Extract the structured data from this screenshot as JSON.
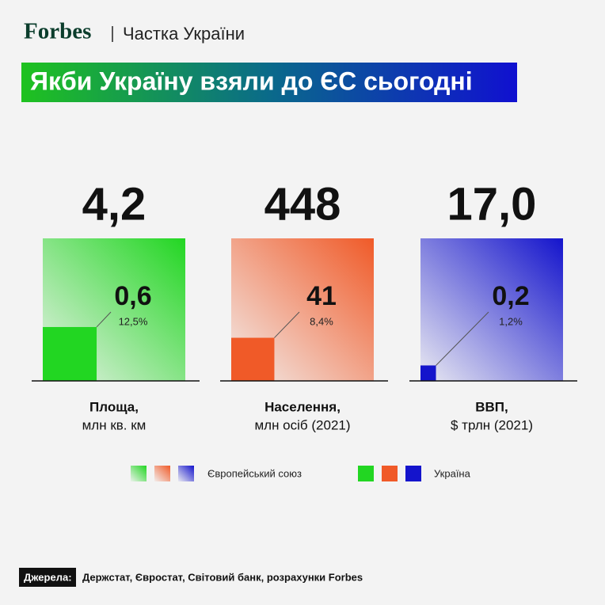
{
  "header": {
    "logo": "Forbes",
    "section": "Частка України"
  },
  "title": "Якби Україну взяли до ЄС сьогодні",
  "panels": [
    {
      "eu": {
        "value": 4.2,
        "label": "4,2"
      },
      "ua": {
        "value": 0.6,
        "label": "0,6"
      },
      "share": "12,5%",
      "label": "Площа,",
      "unit": "млн кв. км",
      "color": "#22d622"
    },
    {
      "eu": {
        "value": 448,
        "label": "448"
      },
      "ua": {
        "value": 41,
        "label": "41"
      },
      "share": "8,4%",
      "label": "Населення,",
      "unit": "млн осіб (2021)",
      "color": "#f05a28"
    },
    {
      "eu": {
        "value": 17.0,
        "label": "17,0"
      },
      "ua": {
        "value": 0.2,
        "label": "0,2"
      },
      "share": "1,2%",
      "label": "ВВП,",
      "unit": "$ трлн (2021)",
      "color": "#1414cc"
    }
  ],
  "legend": {
    "eu": "Європейський союз",
    "ua": "Україна"
  },
  "source": {
    "label": "Джерела:",
    "text": "Держстат, Євростат, Світовий банк, розрахунки Forbes"
  }
}
